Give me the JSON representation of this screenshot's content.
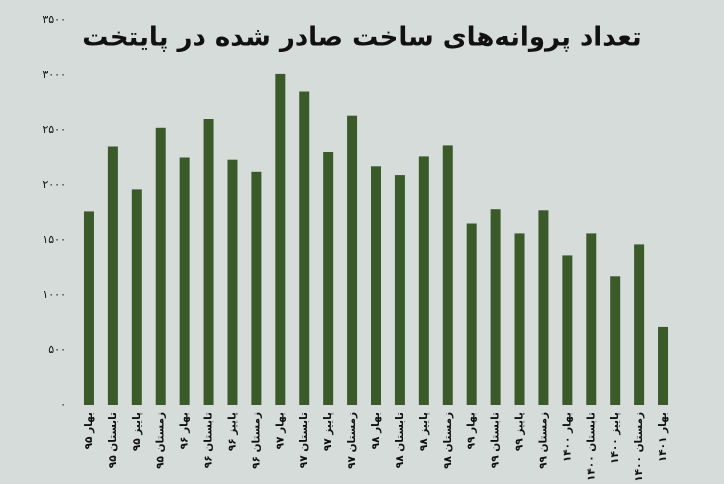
{
  "chart_data": {
    "type": "bar",
    "title": "تعداد پروانه‌های ساخت صادر شده در پایتخت",
    "categories": [
      "بهار ۹۵",
      "تابستان ۹۵",
      "پاییز ۹۵",
      "زمستان ۹۵",
      "بهار ۹۶",
      "تابستان ۹۶",
      "پاییز ۹۶",
      "زمستان ۹۶",
      "بهار ۹۷",
      "تابستان ۹۷",
      "پاییز ۹۷",
      "زمستان ۹۷",
      "بهار ۹۸",
      "تابستان ۹۸",
      "پاییز ۹۸",
      "زمستان ۹۸",
      "بهار ۹۹",
      "تابستان ۹۹",
      "پاییز ۹۹",
      "زمستان ۹۹",
      "بهار ۱۴۰۰",
      "تابستان ۱۴۰۰",
      "پاییز ۱۴۰۰",
      "زمستان ۱۴۰۰",
      "بهار ۱۴۰۱"
    ],
    "values": [
      1760,
      2350,
      1960,
      2520,
      2250,
      2600,
      2230,
      2120,
      3010,
      2850,
      2300,
      2630,
      2170,
      2090,
      2260,
      2360,
      1650,
      1780,
      1560,
      1770,
      1360,
      1560,
      1170,
      1460,
      710
    ],
    "color": "#3b5a2a",
    "ylim": [
      0,
      3500
    ],
    "yticks": [
      {
        "value": 0,
        "label": "۰"
      },
      {
        "value": 500,
        "label": "۵۰۰"
      },
      {
        "value": 1000,
        "label": "۱۰۰۰"
      },
      {
        "value": 1500,
        "label": "۱۵۰۰"
      },
      {
        "value": 2000,
        "label": "۲۰۰۰"
      },
      {
        "value": 2500,
        "label": "۲۵۰۰"
      },
      {
        "value": 3000,
        "label": "۳۰۰۰"
      },
      {
        "value": 3500,
        "label": "۳۵۰۰"
      }
    ],
    "grid": false
  }
}
